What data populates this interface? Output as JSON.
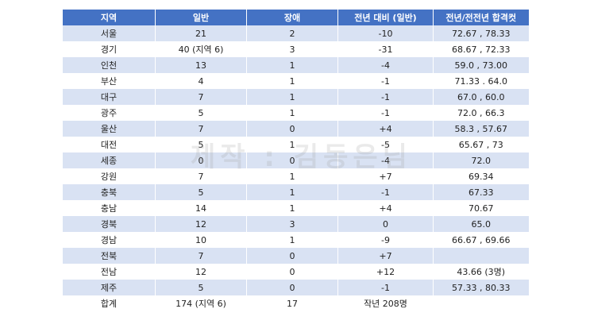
{
  "table": {
    "header": [
      "지역",
      "일반",
      "장애",
      "전년 대비 (일반)",
      "전년/전전년 합격컷"
    ],
    "rows": [
      [
        "서울",
        "21",
        "2",
        "-10",
        "72.67 , 78.33"
      ],
      [
        "경기",
        "40 (지역 6)",
        "3",
        "-31",
        "68.67 , 72.33"
      ],
      [
        "인천",
        "13",
        "1",
        "-4",
        "59.0 , 73.00"
      ],
      [
        "부산",
        "4",
        "1",
        "-1",
        "71.33 . 64.0"
      ],
      [
        "대구",
        "7",
        "1",
        "-1",
        "67.0 , 60.0"
      ],
      [
        "광주",
        "5",
        "1",
        "-1",
        "72.0 , 66.3"
      ],
      [
        "울산",
        "7",
        "0",
        "+4",
        "58.3 , 57.67"
      ],
      [
        "대전",
        "5",
        "1",
        "-5",
        "65.67 , 73"
      ],
      [
        "세종",
        "0",
        "0",
        "-4",
        "72.0"
      ],
      [
        "강원",
        "7",
        "1",
        "+7",
        "69.34"
      ],
      [
        "충북",
        "5",
        "1",
        "-1",
        "67.33"
      ],
      [
        "충남",
        "14",
        "1",
        "+4",
        "70.67"
      ],
      [
        "경북",
        "12",
        "3",
        "0",
        "65.0"
      ],
      [
        "경남",
        "10",
        "1",
        "-9",
        "66.67 , 69.66"
      ],
      [
        "전북",
        "7",
        "0",
        "+7"
      ],
      [
        "전남",
        "12",
        "0",
        "+12",
        "43.66 (3명)"
      ],
      [
        "제주",
        "5",
        "0",
        "-1",
        "57.33 , 80.33"
      ],
      [
        "합계",
        "174 (지역 6)",
        "17",
        "작년 208명"
      ]
    ]
  },
  "watermark": "제작 : 김동은님"
}
